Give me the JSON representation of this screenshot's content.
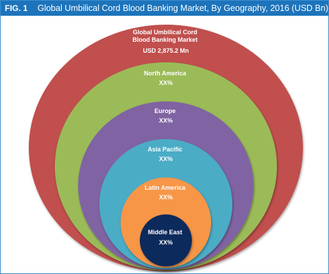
{
  "header": {
    "fig_label": "FIG. 1",
    "title": "Global Umbilical Cord Blood Banking Market, By Geography, 2016 (USD Bn)"
  },
  "rings": [
    {
      "id": "global",
      "lines": [
        "Global Umbilical Cord",
        "Blood Banking  Market",
        "USD 2,875.2 Mn"
      ],
      "color": "#c0504d"
    },
    {
      "id": "north-america",
      "lines": [
        "North America",
        "XX%"
      ],
      "color": "#9bbb59"
    },
    {
      "id": "europe",
      "lines": [
        "Europe",
        "XX%"
      ],
      "color": "#8064a2"
    },
    {
      "id": "asia-pacific",
      "lines": [
        "Asia Pacific",
        "XX%"
      ],
      "color": "#4bacc6"
    },
    {
      "id": "latin-america",
      "lines": [
        "Latin America",
        "XX%"
      ],
      "color": "#f79646"
    },
    {
      "id": "middle-east",
      "lines": [
        "Middle East",
        "XX%"
      ],
      "color": "#0f2a5c"
    }
  ]
}
